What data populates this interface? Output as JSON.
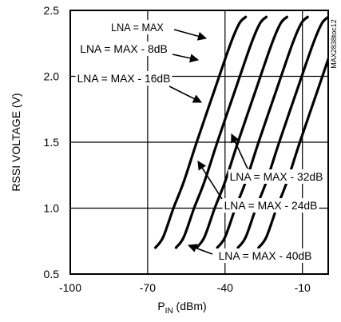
{
  "chart_data": {
    "type": "line",
    "title": "",
    "xlabel_main": "P",
    "xlabel_sub": "IN",
    "xlabel_unit": " (dBm)",
    "ylabel": "RSSI VOLTAGE (V)",
    "xlim": [
      -100,
      0
    ],
    "ylim": [
      0.5,
      2.5
    ],
    "x_ticks": [
      -100,
      -70,
      -40,
      -10
    ],
    "x_tick_labels": [
      "-100",
      "-70",
      "-40",
      "-10"
    ],
    "y_ticks": [
      0.5,
      1.0,
      1.5,
      2.0,
      2.5
    ],
    "y_tick_labels": [
      "0.5",
      "1.0",
      "1.5",
      "2.0",
      "2.5"
    ],
    "grid": true,
    "watermark": "MAX2838toc12",
    "series": [
      {
        "name": "LNA = MAX",
        "x": [
          -32,
          -34.5,
          -38,
          -44,
          -51,
          -56,
          -60,
          -64,
          -67
        ],
        "y": [
          2.45,
          2.4,
          2.24,
          1.9,
          1.5,
          1.2,
          1.0,
          0.78,
          0.7
        ]
      },
      {
        "name": "LNA = MAX - 8dB",
        "x": [
          -24,
          -26.5,
          -30,
          -36,
          -43,
          -48,
          -52,
          -56,
          -59
        ],
        "y": [
          2.45,
          2.4,
          2.24,
          1.9,
          1.5,
          1.2,
          1.0,
          0.78,
          0.7
        ]
      },
      {
        "name": "LNA = MAX - 16dB",
        "x": [
          -16,
          -18.5,
          -22,
          -28,
          -35,
          -40,
          -44,
          -48,
          -51
        ],
        "y": [
          2.45,
          2.4,
          2.24,
          1.9,
          1.5,
          1.2,
          1.0,
          0.78,
          0.7
        ]
      },
      {
        "name": "LNA = MAX - 24dB",
        "x": [
          -8,
          -10.5,
          -14,
          -20,
          -27,
          -32,
          -36,
          -40,
          -43
        ],
        "y": [
          2.45,
          2.4,
          2.24,
          1.9,
          1.5,
          1.2,
          1.0,
          0.78,
          0.7
        ]
      },
      {
        "name": "LNA = MAX - 32dB",
        "x": [
          0,
          -2.5,
          -6,
          -12,
          -19,
          -24,
          -28,
          -32,
          -35
        ],
        "y": [
          2.45,
          2.4,
          2.24,
          1.9,
          1.5,
          1.2,
          1.0,
          0.78,
          0.7
        ]
      },
      {
        "name": "LNA = MAX - 40dB",
        "x": [
          8,
          5.5,
          2,
          -4,
          -11,
          -16,
          -20,
          -24,
          -27
        ],
        "y": [
          2.45,
          2.4,
          2.24,
          1.9,
          1.5,
          1.2,
          1.0,
          0.78,
          0.7
        ]
      }
    ],
    "annotations": [
      {
        "text": "LNA = MAX",
        "series": 0
      },
      {
        "text": "LNA = MAX - 8dB",
        "series": 1
      },
      {
        "text": "LNA = MAX - 16dB",
        "series": 2
      },
      {
        "text": "LNA = MAX - 32dB",
        "series": 4
      },
      {
        "text": "LNA = MAX - 24dB",
        "series": 3
      },
      {
        "text": "LNA = MAX - 40dB",
        "series": 5
      }
    ]
  }
}
